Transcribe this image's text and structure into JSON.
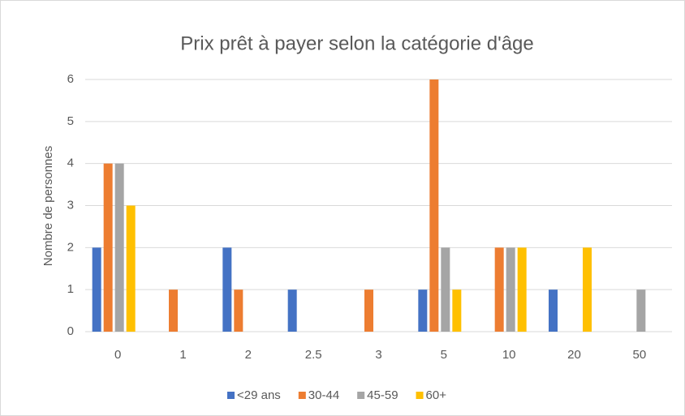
{
  "chart_data": {
    "type": "bar",
    "title": "Prix prêt à payer selon la catégorie d'âge",
    "y_label": "Nombre de personnes",
    "categories": [
      "0",
      "1",
      "2",
      "2.5",
      "3",
      "5",
      "10",
      "20",
      "50"
    ],
    "series": [
      {
        "name": "<29 ans",
        "color": "#4472c4",
        "values": [
          2,
          0,
          2,
          1,
          0,
          1,
          0,
          1,
          0
        ]
      },
      {
        "name": "30-44",
        "color": "#ed7d31",
        "values": [
          4,
          1,
          1,
          0,
          1,
          6,
          2,
          0,
          0
        ]
      },
      {
        "name": "45-59",
        "color": "#a5a5a5",
        "values": [
          4,
          0,
          0,
          0,
          0,
          2,
          2,
          0,
          1
        ]
      },
      {
        "name": "60+",
        "color": "#ffc000",
        "values": [
          3,
          0,
          0,
          0,
          0,
          1,
          2,
          2,
          0
        ]
      }
    ],
    "ylim": [
      0,
      6
    ],
    "yticks": [
      0,
      1,
      2,
      3,
      4,
      5,
      6
    ],
    "grid": true,
    "legend": "bottom"
  }
}
